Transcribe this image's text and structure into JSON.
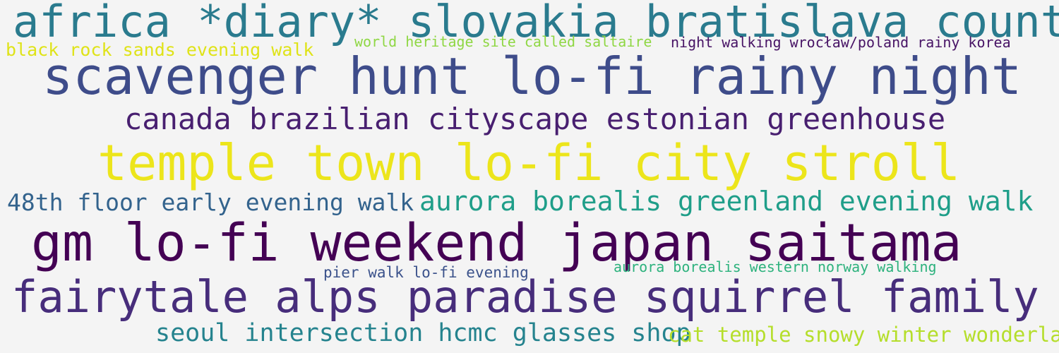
{
  "word_cloud": {
    "phrases": [
      {
        "text": "africa *diary* slovakia bratislava county",
        "color": "#2a7b8e"
      },
      {
        "text": "black rock sands evening walk",
        "color": "#dfe318"
      },
      {
        "text": "world heritage site called saltaire",
        "color": "#8fd744"
      },
      {
        "text": "night walking wrocław/poland rainy korea",
        "color": "#471365"
      },
      {
        "text": "scavenger hunt lo-fi rainy night",
        "color": "#3e4c8a"
      },
      {
        "text": "canada brazilian cityscape estonian greenhouse",
        "color": "#481f70"
      },
      {
        "text": "temple town lo-fi city stroll",
        "color": "#ece51b"
      },
      {
        "text": "48th floor early evening walk",
        "color": "#33638d"
      },
      {
        "text": "aurora borealis greenland evening walk",
        "color": "#1f9e89"
      },
      {
        "text": "gm lo-fi weekend japan saitama",
        "color": "#440154"
      },
      {
        "text": "pier walk lo-fi evening",
        "color": "#3b528b"
      },
      {
        "text": "aurora borealis western norway walking",
        "color": "#2db27d"
      },
      {
        "text": "fairytale alps paradise squirrel family",
        "color": "#472d7b"
      },
      {
        "text": "seoul intersection hcmc glasses shop",
        "color": "#25838e"
      },
      {
        "text": "cat temple snowy winter wonderland",
        "color": "#b5de2b"
      }
    ]
  }
}
